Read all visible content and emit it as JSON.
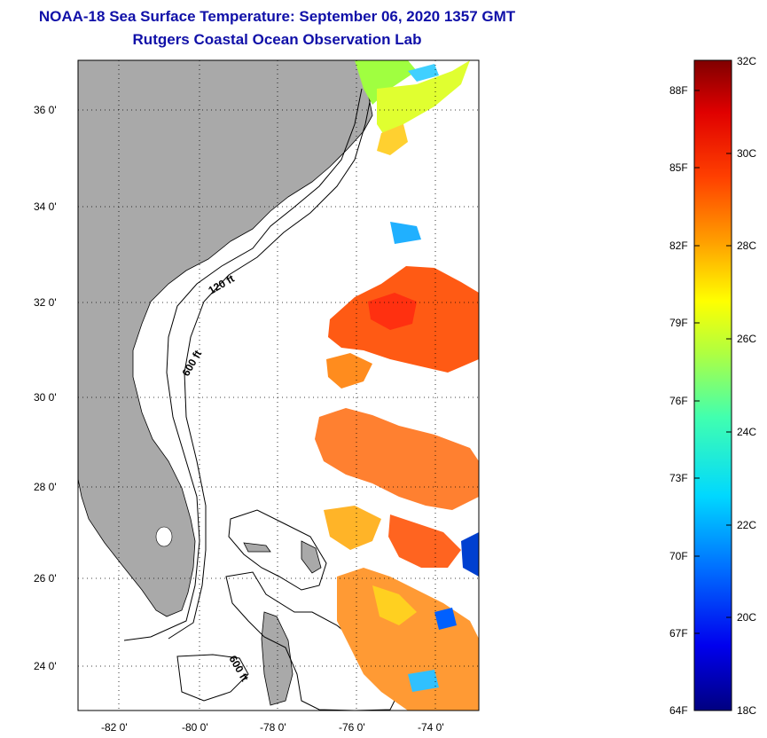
{
  "header": {
    "title": "NOAA-18 Sea Surface Temperature:  September 06, 2020 1357 GMT",
    "subtitle": "Rutgers Coastal Ocean Observation Lab"
  },
  "map": {
    "lat_ticks": [
      "24 0'",
      "26 0'",
      "28 0'",
      "30 0'",
      "32 0'",
      "34 0'",
      "36 0'"
    ],
    "lon_ticks": [
      "-82 0'",
      "-80 0'",
      "-78 0'",
      "-76 0'",
      "-74 0'"
    ],
    "contour_labels": [
      "120 ft",
      "600 ft",
      "600 ft"
    ],
    "colors": {
      "land": "#a9a9a9",
      "ocean": "#ffffff",
      "grid": "#000000"
    }
  },
  "colorbar": {
    "fahrenheit_labels": [
      "88F",
      "85F",
      "82F",
      "79F",
      "76F",
      "73F",
      "70F",
      "67F",
      "64F"
    ],
    "celsius_labels": [
      "32C",
      "30C",
      "28C",
      "26C",
      "24C",
      "22C",
      "20C",
      "18C"
    ],
    "range_celsius": [
      18,
      32
    ]
  }
}
